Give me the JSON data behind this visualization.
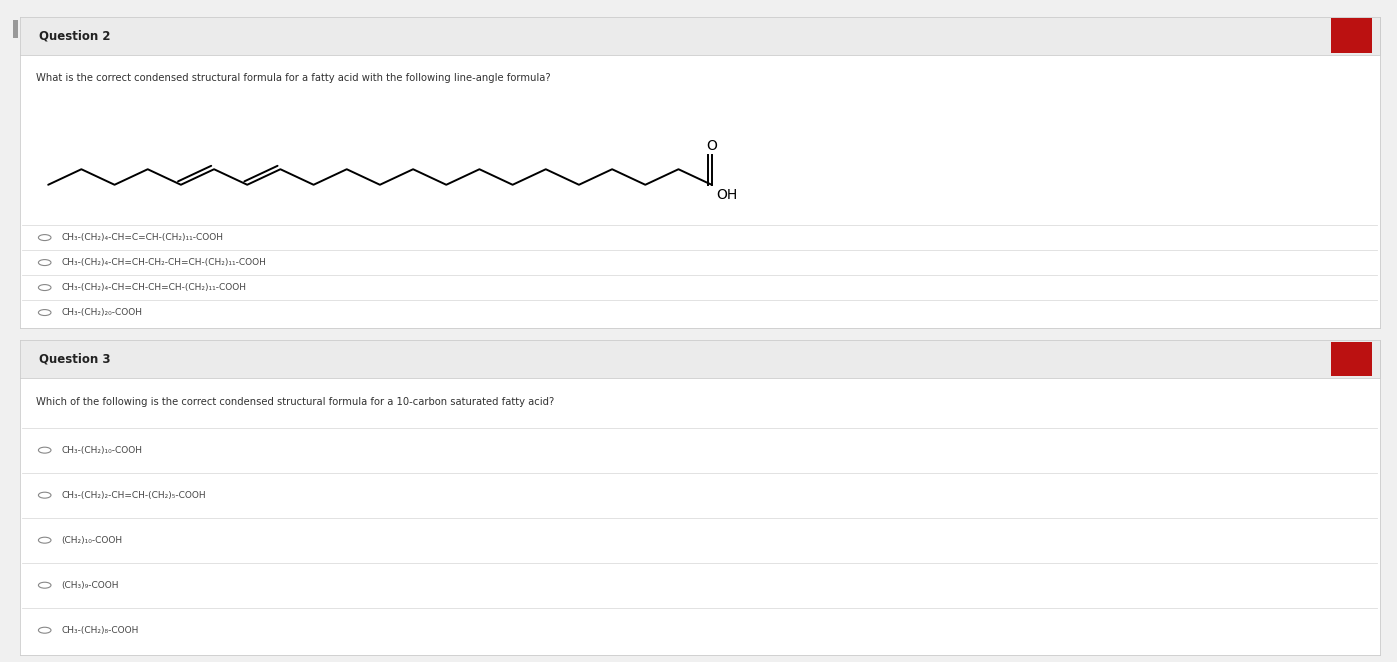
{
  "bg_color": "#f0f0f0",
  "card_bg": "#ffffff",
  "card_border": "#cccccc",
  "header_bg": "#ebebeb",
  "header_text_color": "#222222",
  "body_text_color": "#333333",
  "option_text_color": "#444444",
  "divider_color": "#dddddd",
  "q2_title": "Question 2",
  "q2_question": "What is the correct condensed structural formula for a fatty acid with the following line-angle formula?",
  "q2_options": [
    "CH₃-(CH₂)₄-CH=C=CH-(CH₂)₁₁-COOH",
    "CH₃-(CH₂)₄-CH=CH-CH₂-CH=CH-(CH₂)₁₁-COOH",
    "CH₃-(CH₂)₄-CH=CH-CH=CH-(CH₂)₁₁-COOH",
    "CH₃-(CH₂)₂₀-COOH"
  ],
  "q3_title": "Question 3",
  "q3_question": "Which of the following is the correct condensed structural formula for a 10-carbon saturated fatty acid?",
  "q3_options": [
    "CH₃-(CH₂)₁₀-COOH",
    "CH₃-(CH₂)₂-CH=CH-(CH₂)₅-COOH",
    "(CH₂)₁₀-COOH",
    "(CH₃)₉-COOH",
    "CH₃-(CH₂)₈-COOH"
  ],
  "red_blob_color": "#bb1111",
  "title_fontsize": 8.5,
  "question_fontsize": 7.2,
  "option_fontsize": 6.5
}
